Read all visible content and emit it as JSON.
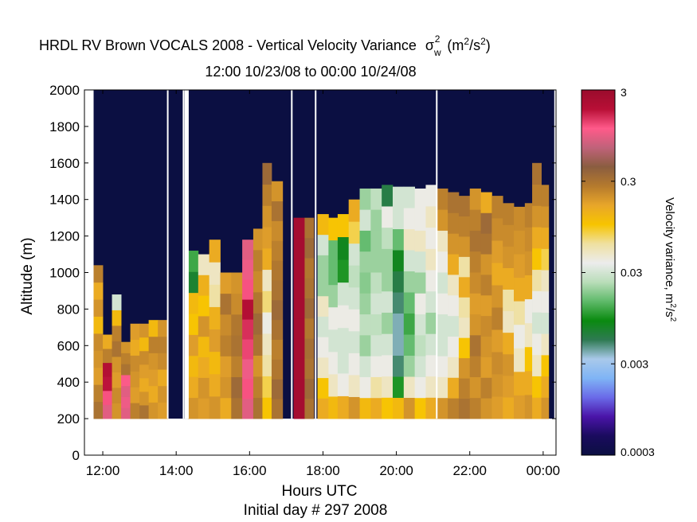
{
  "chart_data": {
    "type": "heatmap",
    "title": "HRDL RV Brown VOCALS 2008 - Vertical Velocity Variance",
    "title_symbol": "σ",
    "title_symbol_sup": "2",
    "title_symbol_sub": "w",
    "title_units": "(m",
    "title_units_sup1": "2",
    "title_units_mid": "/s",
    "title_units_sup2": "2",
    "title_units_end": ")",
    "subtitle": "12:00 10/23/08 to 00:00 10/24/08",
    "xlabel": "Hours UTC",
    "xlabel2": "Initial day # 297  2008",
    "ylabel": "Altitude (m)",
    "xlim": [
      11.5,
      24.35
    ],
    "ylim": [
      0,
      2000
    ],
    "x_ticks": [
      {
        "value": 12,
        "label": "12:00"
      },
      {
        "value": 14,
        "label": "14:00"
      },
      {
        "value": 16,
        "label": "16:00"
      },
      {
        "value": 18,
        "label": "18:00"
      },
      {
        "value": 20,
        "label": "20:00"
      },
      {
        "value": 22,
        "label": "22:00"
      },
      {
        "value": 24,
        "label": "00:00"
      }
    ],
    "y_ticks": [
      0,
      200,
      400,
      600,
      800,
      1000,
      1200,
      1400,
      1600,
      1800,
      2000
    ],
    "data_floor_m": 200,
    "colorbar": {
      "label": "Velocity variance, m",
      "label_sup1": "2",
      "label_mid": "/s",
      "label_sup2": "2",
      "scale": "log",
      "range": [
        0.0003,
        3
      ],
      "ticks": [
        {
          "value": 3,
          "label": "3"
        },
        {
          "value": 0.3,
          "label": "0.3"
        },
        {
          "value": 0.03,
          "label": "0.03"
        },
        {
          "value": 0.003,
          "label": "0.003"
        },
        {
          "value": 0.0003,
          "label": "0.0003"
        }
      ],
      "colors": [
        "#0b0f42",
        "#1a0b5e",
        "#4a14a8",
        "#6a6ae8",
        "#7fb4f5",
        "#a9c9ea",
        "#2e7a52",
        "#0a8a10",
        "#5fba6a",
        "#b9ddb9",
        "#ececec",
        "#efe0a0",
        "#f7c400",
        "#e8a62a",
        "#b57a2d",
        "#8a5d40",
        "#c0627a",
        "#ff5a8a",
        "#b80f36",
        "#9a0c2c"
      ]
    },
    "gap_hours": [
      13.77,
      14.2,
      14.25,
      14.28,
      14.32,
      17.15,
      17.8,
      21.1
    ],
    "columns": [
      {
        "t": [
          11.75,
          12.0
        ],
        "top": 1040,
        "v": [
          0.3,
          0.25,
          0.18,
          0.2,
          0.22,
          0.12,
          0.2,
          0.15,
          0.25
        ]
      },
      {
        "t": [
          12.0,
          12.25
        ],
        "top": 660,
        "v": [
          0.9,
          1.2,
          1.8,
          2.0,
          0.25,
          0.15
        ]
      },
      {
        "t": [
          12.25,
          12.5
        ],
        "top": 880,
        "v": [
          0.2,
          0.22,
          0.18,
          0.2,
          0.3,
          0.25,
          0.12,
          0.03
        ]
      },
      {
        "t": [
          12.5,
          12.75
        ],
        "top": 620,
        "v": [
          0.9,
          1.0,
          0.9,
          1.1,
          0.3,
          0.25,
          0.2
        ]
      },
      {
        "t": [
          12.75,
          13.0
        ],
        "top": 720,
        "v": [
          0.25,
          0.18,
          0.2,
          0.22,
          0.15,
          0.18
        ]
      },
      {
        "t": [
          13.0,
          13.25
        ],
        "top": 720,
        "v": [
          0.3,
          0.2,
          0.15,
          0.18,
          0.22,
          0.12,
          0.2
        ]
      },
      {
        "t": [
          13.25,
          13.5
        ],
        "top": 740,
        "v": [
          0.2,
          0.15,
          0.18,
          0.2,
          0.25,
          0.12
        ]
      },
      {
        "t": [
          13.5,
          13.77
        ],
        "top": 740,
        "v": [
          0.18,
          0.2,
          0.15,
          0.22,
          0.25,
          0.2
        ]
      },
      {
        "t": [
          14.32,
          14.6
        ],
        "top": 1120,
        "v": [
          0.2,
          0.15,
          0.12,
          0.18,
          0.1,
          0.12,
          0.007,
          0.012
        ]
      },
      {
        "t": [
          14.6,
          14.9
        ],
        "top": 1100,
        "v": [
          0.18,
          0.2,
          0.15,
          0.12,
          0.2,
          0.1,
          0.14,
          0.05
        ]
      },
      {
        "t": [
          14.9,
          15.2
        ],
        "top": 1180,
        "v": [
          0.2,
          0.15,
          0.12,
          0.18,
          0.14,
          0.06,
          0.05,
          0.15
        ]
      },
      {
        "t": [
          15.2,
          15.5
        ],
        "top": 1000,
        "v": [
          0.15,
          0.2,
          0.18,
          0.25,
          0.22,
          0.3,
          0.18
        ]
      },
      {
        "t": [
          15.5,
          15.8
        ],
        "top": 1000,
        "v": [
          0.3,
          0.35,
          0.25,
          0.3,
          0.28,
          0.22,
          0.2
        ]
      },
      {
        "t": [
          15.8,
          16.1
        ],
        "top": 1180,
        "v": [
          0.9,
          1.2,
          1.0,
          1.3,
          1.5,
          2.0,
          1.2,
          1.0,
          0.9
        ]
      },
      {
        "t": [
          16.1,
          16.35
        ],
        "top": 1240,
        "v": [
          0.3,
          0.25,
          0.2,
          0.3,
          0.35,
          0.28,
          0.22,
          0.25,
          0.2
        ]
      },
      {
        "t": [
          16.35,
          16.6
        ],
        "top": 1600,
        "v": [
          0.1,
          0.08,
          0.06,
          0.05,
          0.04,
          0.07,
          0.05,
          0.15,
          0.18,
          0.2,
          0.25,
          0.35
        ]
      },
      {
        "t": [
          16.6,
          16.9
        ],
        "top": 1500,
        "v": [
          0.3,
          0.35,
          0.28,
          0.25,
          0.3,
          0.35,
          0.3,
          0.28,
          0.25,
          0.22,
          0.3,
          0.2
        ]
      },
      {
        "t": [
          17.2,
          17.5
        ],
        "top": 1300,
        "v": [
          2.5,
          2.5,
          2.5,
          2.5,
          2.5,
          2.5,
          2.5,
          2.5,
          2.5,
          2.5
        ]
      },
      {
        "t": [
          17.5,
          17.75
        ],
        "top": 1300,
        "v": [
          0.3,
          0.35,
          0.3,
          0.32,
          0.28,
          0.35,
          0.3,
          0.28,
          0.35,
          0.3
        ]
      },
      {
        "t": [
          17.85,
          18.15
        ],
        "top": 1320,
        "v": [
          0.15,
          0.1,
          0.05,
          0.04,
          0.03,
          0.05,
          0.02,
          0.02,
          0.03,
          0.12
        ]
      },
      {
        "t": [
          18.15,
          18.4
        ],
        "top": 1300,
        "v": [
          0.12,
          0.05,
          0.04,
          0.03,
          0.04,
          0.02,
          0.015,
          0.015,
          0.1
        ]
      },
      {
        "t": [
          18.4,
          18.7
        ],
        "top": 1320,
        "v": [
          0.15,
          0.04,
          0.03,
          0.03,
          0.04,
          0.03,
          0.01,
          0.008,
          0.1
        ]
      },
      {
        "t": [
          18.7,
          19.0
        ],
        "top": 1400,
        "v": [
          0.2,
          0.05,
          0.04,
          0.03,
          0.04,
          0.03,
          0.025,
          0.03,
          0.08,
          0.15
        ]
      },
      {
        "t": [
          19.0,
          19.3
        ],
        "top": 1460,
        "v": [
          0.12,
          0.04,
          0.03,
          0.02,
          0.025,
          0.02,
          0.018,
          0.02,
          0.015,
          0.03,
          0.02
        ]
      },
      {
        "t": [
          19.3,
          19.6
        ],
        "top": 1460,
        "v": [
          0.15,
          0.06,
          0.04,
          0.03,
          0.025,
          0.03,
          0.025,
          0.02,
          0.02,
          0.02,
          0.025
        ]
      },
      {
        "t": [
          19.6,
          19.9
        ],
        "top": 1480,
        "v": [
          0.1,
          0.05,
          0.04,
          0.03,
          0.02,
          0.03,
          0.02,
          0.02,
          0.025,
          0.04,
          0.006
        ]
      },
      {
        "t": [
          19.9,
          20.2
        ],
        "top": 1470,
        "v": [
          0.12,
          0.01,
          0.005,
          0.004,
          0.004,
          0.005,
          0.006,
          0.008,
          0.015,
          0.03,
          0.03
        ]
      },
      {
        "t": [
          20.2,
          20.5
        ],
        "top": 1470,
        "v": [
          0.2,
          0.05,
          0.02,
          0.015,
          0.012,
          0.015,
          0.02,
          0.03,
          0.05,
          0.04,
          0.03
        ]
      },
      {
        "t": [
          20.5,
          20.8
        ],
        "top": 1460,
        "v": [
          0.1,
          0.04,
          0.03,
          0.025,
          0.03,
          0.04,
          0.02,
          0.03,
          0.05,
          0.04,
          0.04
        ]
      },
      {
        "t": [
          20.8,
          21.1
        ],
        "top": 1480,
        "v": [
          0.15,
          0.05,
          0.04,
          0.03,
          0.02,
          0.03,
          0.04,
          0.05,
          0.04,
          0.05,
          0.04
        ]
      },
      {
        "t": [
          21.1,
          21.4
        ],
        "top": 1460,
        "v": [
          0.2,
          0.05,
          0.04,
          0.03,
          0.03,
          0.04,
          0.03,
          0.04,
          0.05,
          0.2,
          0.25
        ]
      },
      {
        "t": [
          21.4,
          21.7
        ],
        "top": 1440,
        "v": [
          0.25,
          0.15,
          0.05,
          0.04,
          0.03,
          0.04,
          0.05,
          0.15,
          0.2,
          0.25,
          0.3
        ]
      },
      {
        "t": [
          21.7,
          22.0
        ],
        "top": 1420,
        "v": [
          0.3,
          0.25,
          0.2,
          0.1,
          0.05,
          0.06,
          0.15,
          0.06,
          0.2,
          0.25,
          0.3
        ]
      },
      {
        "t": [
          22.0,
          22.3
        ],
        "top": 1460,
        "v": [
          0.25,
          0.2,
          0.25,
          0.3,
          0.2,
          0.18,
          0.22,
          0.25,
          0.3,
          0.25,
          0.2
        ]
      },
      {
        "t": [
          22.3,
          22.6
        ],
        "top": 1440,
        "v": [
          0.2,
          0.25,
          0.18,
          0.2,
          0.22,
          0.18,
          0.25,
          0.2,
          0.3,
          0.35,
          0.15
        ]
      },
      {
        "t": [
          22.6,
          22.9
        ],
        "top": 1420,
        "v": [
          0.18,
          0.2,
          0.22,
          0.18,
          0.25,
          0.2,
          0.15,
          0.18,
          0.22,
          0.25
        ]
      },
      {
        "t": [
          22.9,
          23.2
        ],
        "top": 1380,
        "v": [
          0.15,
          0.18,
          0.2,
          0.15,
          0.05,
          0.06,
          0.15,
          0.2,
          0.22,
          0.25
        ]
      },
      {
        "t": [
          23.2,
          23.5
        ],
        "top": 1360,
        "v": [
          0.18,
          0.15,
          0.05,
          0.04,
          0.06,
          0.15,
          0.18,
          0.2,
          0.22
        ]
      },
      {
        "t": [
          23.5,
          23.7
        ],
        "top": 1380,
        "v": [
          0.2,
          0.15,
          0.1,
          0.05,
          0.04,
          0.15,
          0.2,
          0.22,
          0.25
        ]
      },
      {
        "t": [
          23.7,
          23.95
        ],
        "top": 1600,
        "v": [
          0.15,
          0.1,
          0.05,
          0.04,
          0.03,
          0.04,
          0.06,
          0.1,
          0.15,
          0.2,
          0.25,
          0.3
        ]
      },
      {
        "t": [
          23.95,
          24.15
        ],
        "top": 1480,
        "v": [
          0.2,
          0.15,
          0.1,
          0.05,
          0.03,
          0.04,
          0.05,
          0.08,
          0.15,
          0.2,
          0.25
        ]
      }
    ]
  }
}
